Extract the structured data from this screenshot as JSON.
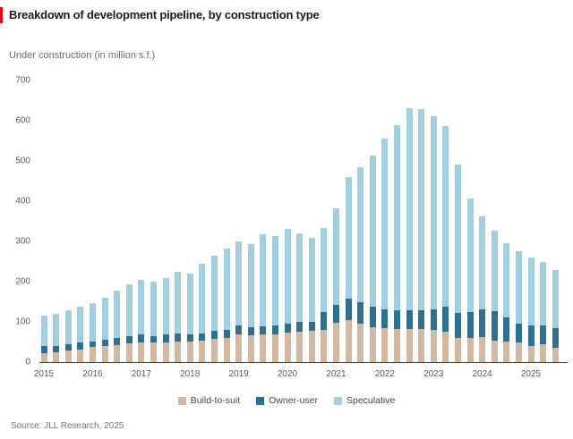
{
  "header": {
    "title": "Breakdown of development pipeline, by construction type",
    "subtitle": "Under construction (in million s.f.)",
    "accent_color": "#e30613"
  },
  "footer": {
    "source": "Source: JLL Research, 2025"
  },
  "chart_data": {
    "type": "bar",
    "stacked": true,
    "title": "Breakdown of development pipeline, by construction type",
    "ylabel": "Under construction (in million s.f.)",
    "ylim": [
      0,
      700
    ],
    "yticks": [
      0,
      100,
      200,
      300,
      400,
      500,
      600,
      700
    ],
    "grid": false,
    "legend_position": "bottom-center",
    "x_year_labels": [
      "2015",
      "2016",
      "2017",
      "2018",
      "2019",
      "2020",
      "2021",
      "2022",
      "2023",
      "2024",
      "2025"
    ],
    "categories": [
      "2015 Q1",
      "2015 Q2",
      "2015 Q3",
      "2015 Q4",
      "2016 Q1",
      "2016 Q2",
      "2016 Q3",
      "2016 Q4",
      "2017 Q1",
      "2017 Q2",
      "2017 Q3",
      "2017 Q4",
      "2018 Q1",
      "2018 Q2",
      "2018 Q3",
      "2018 Q4",
      "2019 Q1",
      "2019 Q2",
      "2019 Q3",
      "2019 Q4",
      "2020 Q1",
      "2020 Q2",
      "2020 Q3",
      "2020 Q4",
      "2021 Q1",
      "2021 Q2",
      "2021 Q3",
      "2021 Q4",
      "2022 Q1",
      "2022 Q2",
      "2022 Q3",
      "2022 Q4",
      "2023 Q1",
      "2023 Q2",
      "2023 Q3",
      "2023 Q4",
      "2024 Q1",
      "2024 Q2",
      "2024 Q3",
      "2024 Q4",
      "2025 Q1",
      "2025 Q2",
      "2025 Q3"
    ],
    "series": [
      {
        "name": "Build-to-suit",
        "color": "#d2b8a0",
        "values": [
          22,
          24,
          29,
          31,
          37,
          41,
          42,
          46,
          48,
          48,
          50,
          52,
          52,
          53,
          57,
          59,
          68,
          67,
          69,
          68,
          74,
          76,
          78,
          79,
          98,
          104,
          96,
          87,
          85,
          82,
          82,
          82,
          79,
          76,
          61,
          59,
          62,
          54,
          52,
          48,
          39,
          44,
          35
        ]
      },
      {
        "name": "Owner-user",
        "color": "#30708f",
        "values": [
          17,
          15,
          15,
          17,
          15,
          15,
          17,
          19,
          20,
          17,
          19,
          20,
          18,
          19,
          21,
          21,
          23,
          20,
          20,
          23,
          22,
          25,
          22,
          46,
          45,
          53,
          53,
          50,
          47,
          48,
          46,
          48,
          53,
          61,
          61,
          65,
          69,
          72,
          59,
          48,
          53,
          48,
          49
        ]
      },
      {
        "name": "Speculative",
        "color": "#a3cedf",
        "values": [
          77,
          81,
          85,
          89,
          94,
          105,
          118,
          128,
          136,
          136,
          140,
          152,
          150,
          172,
          187,
          203,
          209,
          207,
          229,
          222,
          235,
          218,
          209,
          208,
          239,
          302,
          336,
          376,
          424,
          459,
          504,
          500,
          480,
          450,
          370,
          283,
          231,
          200,
          184,
          180,
          169,
          158,
          146
        ]
      }
    ],
    "totals": [
      116,
      120,
      129,
      137,
      146,
      161,
      177,
      193,
      204,
      201,
      209,
      224,
      220,
      244,
      265,
      283,
      300,
      294,
      318,
      313,
      331,
      319,
      309,
      333,
      382,
      459,
      485,
      513,
      556,
      589,
      632,
      630,
      612,
      587,
      492,
      407,
      362,
      326,
      295,
      276,
      261,
      250,
      230
    ]
  }
}
